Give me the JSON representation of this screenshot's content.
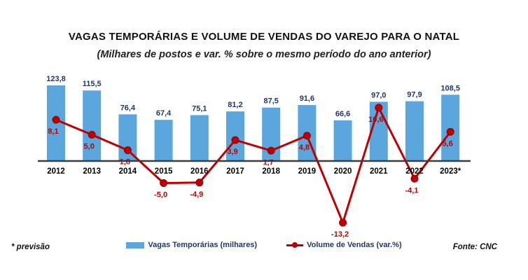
{
  "header": {
    "title": "VAGAS TEMPORÁRIAS E VOLUME DE VENDAS DO VAREJO PARA O NATAL",
    "subtitle": "(Milhares de postos e var. % sobre o mesmo período do ano anterior)"
  },
  "footer": {
    "note": "* previsão",
    "source": "Fonte: CNC"
  },
  "legend": {
    "bars": {
      "label": "Vagas Temporárias (milhares)"
    },
    "line": {
      "label": "Volume de Vendas (var.%)"
    }
  },
  "colors": {
    "bar": "#5BA6DC",
    "line": "#C00000",
    "marker_stroke": "#8B0000",
    "bar_label": "#1F3864",
    "line_label": "#C00000",
    "axis": "#3C3C3C",
    "year_label": "#000000"
  },
  "chart_data": {
    "type": "bar",
    "combo": "bar+line",
    "title": "VAGAS TEMPORÁRIAS E VOLUME DE VENDAS DO VAREJO PARA O NATAL",
    "subtitle": "(Milhares de postos e var. % sobre o mesmo período do ano anterior)",
    "xlabel": "",
    "ylabel": "",
    "grid": false,
    "legend_position": "bottom",
    "categories": [
      "2012",
      "2013",
      "2014",
      "2015",
      "2016",
      "2017",
      "2018",
      "2019",
      "2020",
      "2021",
      "2022",
      "2023*"
    ],
    "series": [
      {
        "name": "Vagas Temporárias (milhares)",
        "type": "bar",
        "axis_range": [
          0,
          130
        ],
        "values": [
          123.8,
          115.5,
          76.4,
          67.4,
          75.1,
          81.2,
          87.5,
          91.6,
          66.6,
          97.0,
          97.9,
          108.5
        ],
        "labels": [
          "123,8",
          "115,5",
          "76,4",
          "67,4",
          "75,1",
          "81,2",
          "87,5",
          "91,6",
          "66,6",
          "97,0",
          "97,9",
          "108,5"
        ]
      },
      {
        "name": "Volume de Vendas (var.%)",
        "type": "line",
        "axis_range": [
          -15,
          12
        ],
        "values": [
          8.1,
          5.0,
          1.8,
          -5.0,
          -4.9,
          3.9,
          1.7,
          4.8,
          -13.2,
          10.6,
          -4.1,
          5.6
        ],
        "labels": [
          "8,1",
          "5,0",
          "1,8",
          "-5,0",
          "-4,9",
          "3,9",
          "1,7",
          "4,8",
          "-13,2",
          "10,6",
          "-4,1",
          "5,6"
        ]
      }
    ]
  }
}
